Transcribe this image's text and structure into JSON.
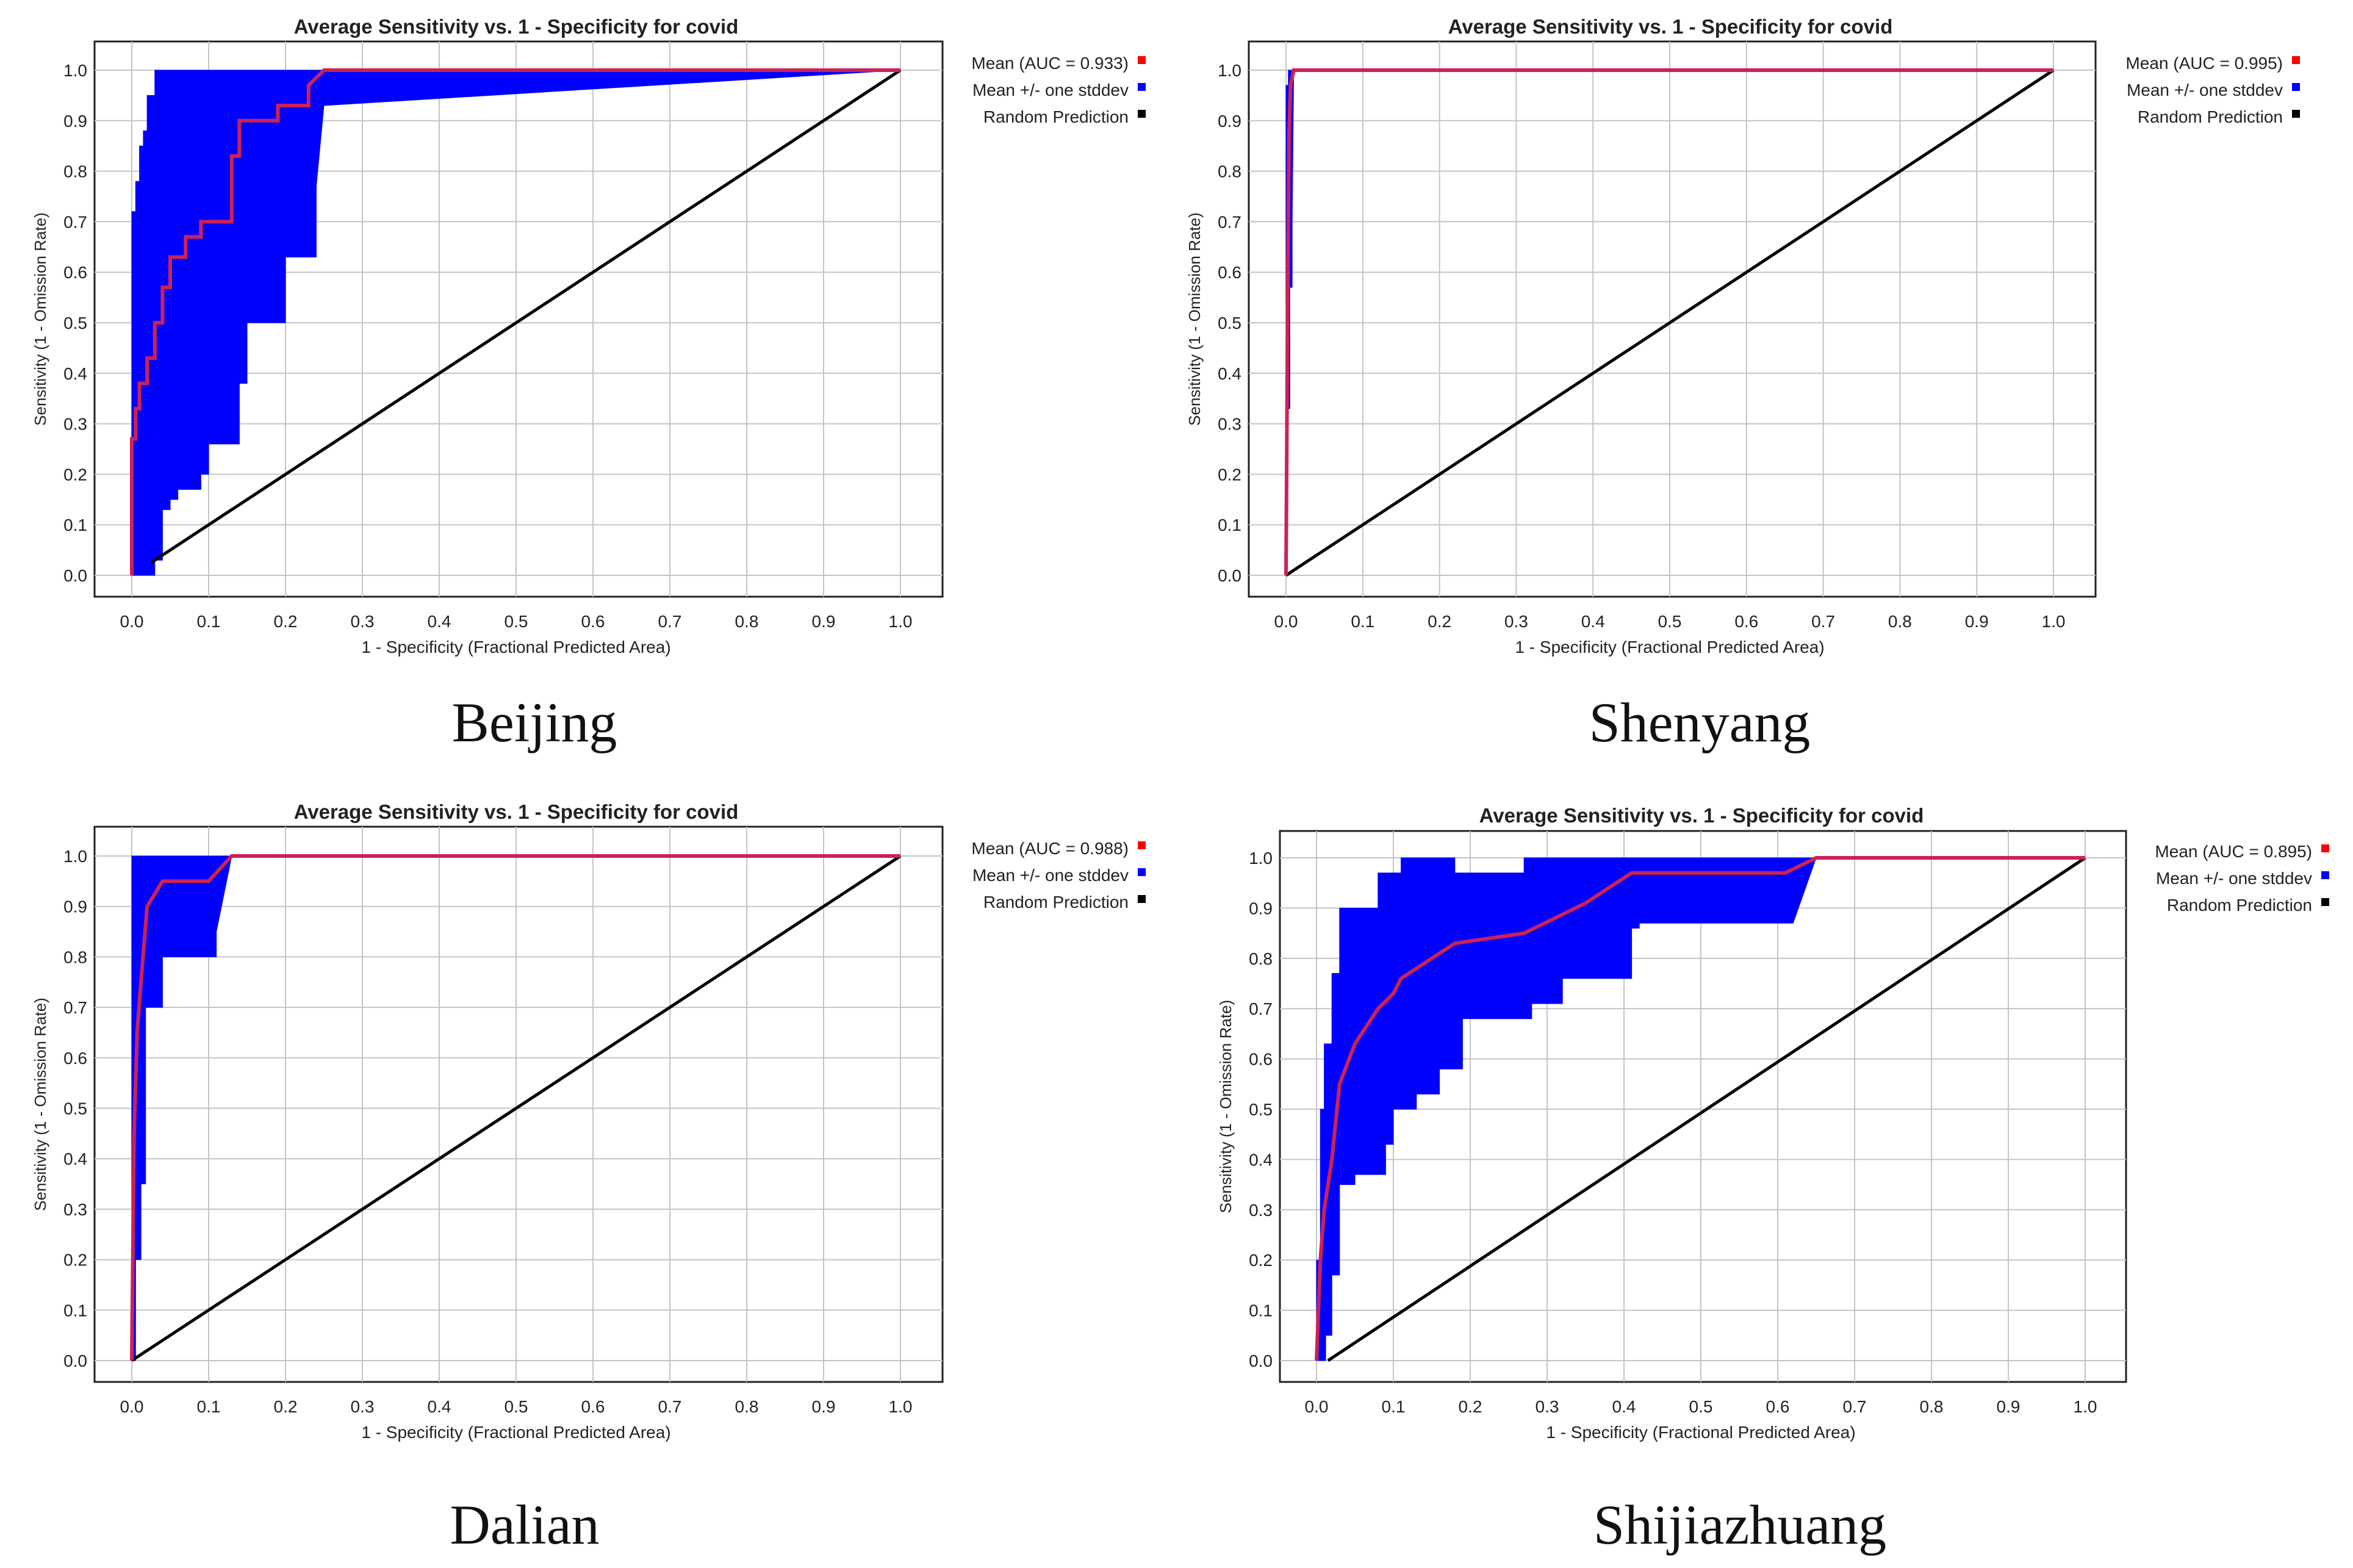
{
  "tick_labels": [
    "0.0",
    "0.1",
    "0.2",
    "0.3",
    "0.4",
    "0.5",
    "0.6",
    "0.7",
    "0.8",
    "0.9",
    "1.0"
  ],
  "legend_colors": {
    "mean": "#ff0000",
    "stddev": "#0000ff",
    "random": "#000000"
  },
  "chart_data": [
    {
      "type": "area",
      "title": "Average Sensitivity vs. 1 - Specificity for covid",
      "caption": "Beijing",
      "xlabel": "1 - Specificity (Fractional Predicted Area)",
      "ylabel": "Sensitivity (1 - Omission Rate)",
      "xlim": [
        0,
        1
      ],
      "ylim": [
        0,
        1
      ],
      "grid": true,
      "legend": "right",
      "legend_entries": [
        "Mean (AUC = 0.933)",
        "Mean +/- one stddev",
        "Random Prediction"
      ],
      "series": [
        {
          "name": "Mean (AUC = 0.933)",
          "x": [
            0,
            0,
            0.005,
            0.005,
            0.01,
            0.01,
            0.02,
            0.02,
            0.03,
            0.03,
            0.04,
            0.04,
            0.05,
            0.05,
            0.07,
            0.07,
            0.09,
            0.09,
            0.1,
            0.1,
            0.13,
            0.13,
            0.14,
            0.14,
            0.16,
            0.16,
            0.19,
            0.19,
            0.2,
            0.2,
            0.23,
            0.23,
            0.25,
            1.0
          ],
          "y": [
            0,
            0.27,
            0.27,
            0.33,
            0.33,
            0.38,
            0.38,
            0.43,
            0.43,
            0.5,
            0.5,
            0.57,
            0.57,
            0.63,
            0.63,
            0.67,
            0.67,
            0.7,
            0.7,
            0.7,
            0.7,
            0.83,
            0.83,
            0.9,
            0.9,
            0.9,
            0.9,
            0.93,
            0.93,
            0.93,
            0.93,
            0.97,
            1.0,
            1.0
          ]
        },
        {
          "name": "Mean +/- one stddev",
          "upper_x": [
            0,
            0,
            0.005,
            0.005,
            0.01,
            0.01,
            0.015,
            0.015,
            0.02,
            0.02,
            0.03,
            0.03,
            1.0
          ],
          "upper_y": [
            0,
            0.72,
            0.72,
            0.78,
            0.78,
            0.85,
            0.85,
            0.88,
            0.88,
            0.95,
            0.95,
            1.0,
            1.0
          ],
          "lower_x": [
            0,
            0.03,
            0.03,
            0.04,
            0.04,
            0.05,
            0.05,
            0.06,
            0.06,
            0.09,
            0.09,
            0.1,
            0.1,
            0.14,
            0.14,
            0.15,
            0.15,
            0.2,
            0.2,
            0.24,
            0.24,
            0.25,
            1.0
          ],
          "lower_y": [
            0,
            0,
            0.03,
            0.03,
            0.13,
            0.13,
            0.15,
            0.15,
            0.17,
            0.17,
            0.2,
            0.2,
            0.26,
            0.26,
            0.38,
            0.38,
            0.5,
            0.5,
            0.63,
            0.63,
            0.77,
            0.93,
            1.0
          ]
        },
        {
          "name": "Random Prediction",
          "x": [
            0.025,
            1
          ],
          "y": [
            0.025,
            1
          ]
        }
      ]
    },
    {
      "type": "area",
      "title": "Average Sensitivity vs. 1 - Specificity for covid",
      "caption": "Shenyang",
      "xlabel": "1 - Specificity (Fractional Predicted Area)",
      "ylabel": "Sensitivity (1 - Omission Rate)",
      "xlim": [
        0,
        1
      ],
      "ylim": [
        0,
        1
      ],
      "grid": true,
      "legend": "right",
      "legend_entries": [
        "Mean (AUC = 0.995)",
        "Mean +/- one stddev",
        "Random Prediction"
      ],
      "series": [
        {
          "name": "Mean (AUC = 0.995)",
          "x": [
            0,
            0.002,
            0.004,
            0.006,
            0.01,
            1.0
          ],
          "y": [
            0,
            0.5,
            0.88,
            0.97,
            1.0,
            1.0
          ]
        },
        {
          "name": "Mean +/- one stddev",
          "upper_x": [
            0,
            0,
            0.003,
            0.003,
            1.0
          ],
          "upper_y": [
            0,
            0.97,
            0.97,
            1.0,
            1.0
          ],
          "lower_x": [
            0,
            0.002,
            0.002,
            0.005,
            0.005,
            0.008,
            0.008,
            0.01,
            1.0
          ],
          "lower_y": [
            0,
            0,
            0.33,
            0.33,
            0.57,
            0.57,
            0.7,
            1.0,
            1.0
          ]
        },
        {
          "name": "Random Prediction",
          "x": [
            0,
            1
          ],
          "y": [
            0,
            1
          ]
        }
      ]
    },
    {
      "type": "area",
      "title": "Average Sensitivity vs. 1 - Specificity for covid",
      "caption": "Dalian",
      "xlabel": "1 - Specificity (Fractional Predicted Area)",
      "ylabel": "Sensitivity (1 - Omission Rate)",
      "xlim": [
        0,
        1
      ],
      "ylim": [
        0,
        1
      ],
      "grid": true,
      "legend": "right",
      "legend_entries": [
        "Mean (AUC = 0.988)",
        "Mean +/- one stddev",
        "Random Prediction"
      ],
      "series": [
        {
          "name": "Mean (AUC = 0.988)",
          "x": [
            0,
            0.003,
            0.003,
            0.007,
            0.007,
            0.012,
            0.012,
            0.02,
            0.02,
            0.04,
            0.04,
            0.1,
            0.1,
            0.13,
            1.0
          ],
          "y": [
            0,
            0.45,
            0.45,
            0.65,
            0.65,
            0.75,
            0.75,
            0.9,
            0.9,
            0.95,
            0.95,
            0.95,
            0.95,
            1.0,
            1.0
          ]
        },
        {
          "name": "Mean +/- one stddev",
          "upper_x": [
            0,
            0,
            1.0
          ],
          "upper_y": [
            0,
            1.0,
            1.0
          ],
          "lower_x": [
            0,
            0.005,
            0.005,
            0.012,
            0.012,
            0.018,
            0.018,
            0.02,
            0.02,
            0.04,
            0.04,
            0.1,
            0.1,
            0.11,
            0.11,
            0.13,
            1.0
          ],
          "lower_y": [
            0,
            0,
            0.2,
            0.2,
            0.35,
            0.35,
            0.7,
            0.7,
            0.7,
            0.7,
            0.8,
            0.8,
            0.8,
            0.8,
            0.85,
            1.0,
            1.0
          ]
        },
        {
          "name": "Random Prediction",
          "x": [
            0,
            1
          ],
          "y": [
            0,
            1
          ]
        }
      ]
    },
    {
      "type": "area",
      "title": "Average Sensitivity vs. 1 - Specificity for covid",
      "caption": "Shijiazhuang",
      "xlabel": "1 - Specificity (Fractional Predicted Area)",
      "ylabel": "Sensitivity (1 - Omission Rate)",
      "xlim": [
        0,
        1
      ],
      "ylim": [
        0,
        1
      ],
      "grid": true,
      "legend": "right",
      "legend_entries": [
        "Mean (AUC = 0.895)",
        "Mean +/- one stddev",
        "Random Prediction"
      ],
      "series": [
        {
          "name": "Mean (AUC = 0.895)",
          "x": [
            0,
            0.005,
            0.005,
            0.01,
            0.01,
            0.02,
            0.02,
            0.03,
            0.03,
            0.05,
            0.05,
            0.08,
            0.08,
            0.1,
            0.1,
            0.11,
            0.11,
            0.15,
            0.15,
            0.18,
            0.18,
            0.27,
            0.27,
            0.31,
            0.31,
            0.35,
            0.35,
            0.41,
            0.41,
            0.61,
            0.61,
            0.65,
            1.0
          ],
          "y": [
            0,
            0.2,
            0.2,
            0.3,
            0.3,
            0.4,
            0.4,
            0.55,
            0.55,
            0.63,
            0.63,
            0.7,
            0.7,
            0.73,
            0.73,
            0.76,
            0.76,
            0.8,
            0.8,
            0.83,
            0.83,
            0.85,
            0.85,
            0.88,
            0.88,
            0.91,
            0.91,
            0.97,
            0.97,
            0.97,
            0.97,
            1.0,
            1.0
          ]
        },
        {
          "name": "Mean +/- one stddev",
          "upper_x": [
            0,
            0,
            0.005,
            0.005,
            0.01,
            0.01,
            0.02,
            0.02,
            0.03,
            0.03,
            0.04,
            0.04,
            0.08,
            0.08,
            0.11,
            0.11,
            0.18,
            0.18,
            0.27,
            0.27,
            1.0
          ],
          "upper_y": [
            0,
            0.2,
            0.2,
            0.5,
            0.5,
            0.63,
            0.63,
            0.77,
            0.77,
            0.9,
            0.9,
            0.9,
            0.9,
            0.97,
            0.97,
            1.0,
            1.0,
            0.97,
            0.97,
            1.0,
            1.0
          ],
          "lower_x": [
            0,
            0.012,
            0.012,
            0.02,
            0.02,
            0.03,
            0.03,
            0.05,
            0.05,
            0.09,
            0.09,
            0.1,
            0.1,
            0.13,
            0.13,
            0.16,
            0.16,
            0.19,
            0.19,
            0.28,
            0.28,
            0.32,
            0.32,
            0.41,
            0.41,
            0.42,
            0.42,
            0.62,
            0.62,
            0.65,
            1.0
          ],
          "lower_y": [
            0,
            0,
            0.05,
            0.05,
            0.17,
            0.17,
            0.35,
            0.35,
            0.37,
            0.37,
            0.43,
            0.43,
            0.5,
            0.5,
            0.53,
            0.53,
            0.58,
            0.58,
            0.68,
            0.68,
            0.71,
            0.71,
            0.76,
            0.76,
            0.86,
            0.86,
            0.87,
            0.87,
            0.87,
            1.0,
            1.0
          ]
        },
        {
          "name": "Random Prediction",
          "x": [
            0.015,
            1
          ],
          "y": [
            0,
            1
          ]
        }
      ]
    }
  ]
}
